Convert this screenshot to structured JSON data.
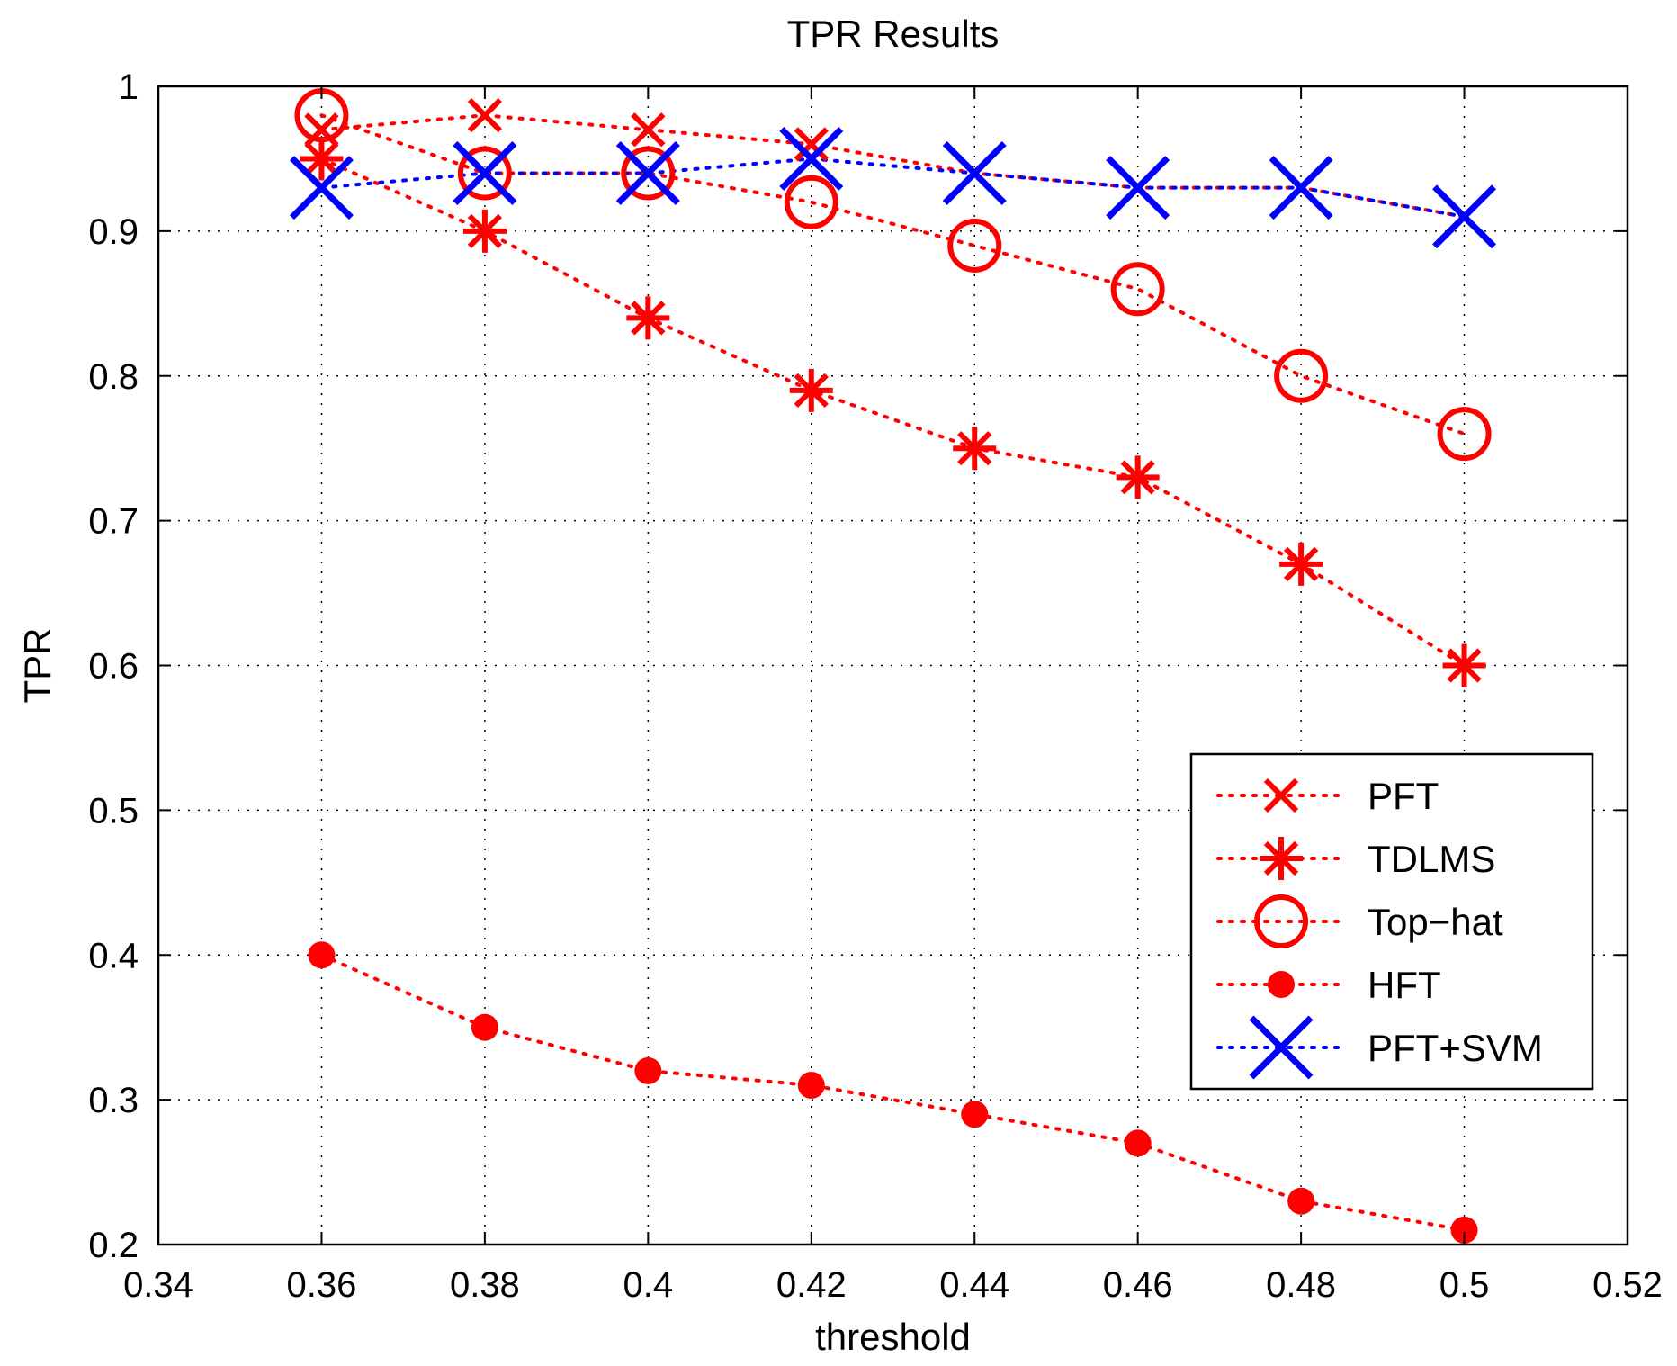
{
  "chart_data": {
    "type": "line",
    "title": "TPR Results",
    "xlabel": "threshold",
    "ylabel": "TPR",
    "xlim": [
      0.34,
      0.52
    ],
    "ylim": [
      0.2,
      1.0
    ],
    "xticks": [
      0.34,
      0.36,
      0.38,
      0.4,
      0.42,
      0.44,
      0.46,
      0.48,
      0.5,
      0.52
    ],
    "xtick_labels": [
      "0.34",
      "0.36",
      "0.38",
      "0.4",
      "0.42",
      "0.44",
      "0.46",
      "0.48",
      "0.5",
      "0.52"
    ],
    "yticks": [
      0.2,
      0.3,
      0.4,
      0.5,
      0.6,
      0.7,
      0.8,
      0.9,
      1.0
    ],
    "ytick_labels": [
      "0.2",
      "0.3",
      "0.4",
      "0.5",
      "0.6",
      "0.7",
      "0.8",
      "0.9",
      "1"
    ],
    "grid": true,
    "legend_position": "middle-right",
    "x": [
      0.36,
      0.38,
      0.4,
      0.42,
      0.44,
      0.46,
      0.48,
      0.5
    ],
    "series": [
      {
        "name": "PFT",
        "marker": "x",
        "color": "#ff0000",
        "values": [
          0.97,
          0.98,
          0.97,
          0.96,
          0.94,
          0.93,
          0.93,
          0.91
        ]
      },
      {
        "name": "TDLMS",
        "marker": "asterisk",
        "color": "#ff0000",
        "values": [
          0.95,
          0.9,
          0.84,
          0.79,
          0.75,
          0.73,
          0.67,
          0.6
        ]
      },
      {
        "name": "Top−hat",
        "marker": "circle",
        "color": "#ff0000",
        "values": [
          0.98,
          0.94,
          0.94,
          0.92,
          0.89,
          0.86,
          0.8,
          0.76
        ]
      },
      {
        "name": "HFT",
        "marker": "dot",
        "color": "#ff0000",
        "values": [
          0.4,
          0.35,
          0.32,
          0.31,
          0.29,
          0.27,
          0.23,
          0.21
        ]
      },
      {
        "name": "PFT+SVM",
        "marker": "x-large",
        "color": "#0000ff",
        "values": [
          0.93,
          0.94,
          0.94,
          0.95,
          0.94,
          0.93,
          0.93,
          0.91
        ]
      }
    ]
  }
}
